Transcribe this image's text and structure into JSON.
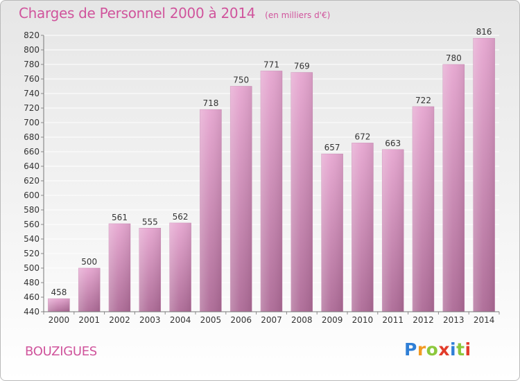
{
  "title": "Charges de Personnel 2000 à 2014",
  "unit": "(en milliers d'€)",
  "place": "BOUZIGUES",
  "logo": {
    "letters": [
      "P",
      "r",
      "o",
      "x",
      "i",
      "t",
      "i"
    ],
    "colors": [
      "#2f7fd6",
      "#f29a23",
      "#8cc83c",
      "#e23b2a",
      "#2f7fd6",
      "#8cc83c",
      "#e23b2a"
    ]
  },
  "chart_data": {
    "type": "bar",
    "categories": [
      "2000",
      "2001",
      "2002",
      "2003",
      "2004",
      "2005",
      "2006",
      "2007",
      "2008",
      "2009",
      "2010",
      "2011",
      "2012",
      "2013",
      "2014"
    ],
    "values": [
      458,
      500,
      561,
      555,
      562,
      718,
      750,
      771,
      769,
      657,
      672,
      663,
      722,
      780,
      816
    ],
    "ylim": [
      440,
      820
    ],
    "yticks": [
      440,
      460,
      480,
      500,
      520,
      540,
      560,
      580,
      600,
      620,
      640,
      660,
      680,
      700,
      720,
      740,
      760,
      780,
      800,
      820
    ],
    "grid": true,
    "bar_color_top": "#e6a6d0",
    "bar_color_bottom": "#ad6a96"
  }
}
